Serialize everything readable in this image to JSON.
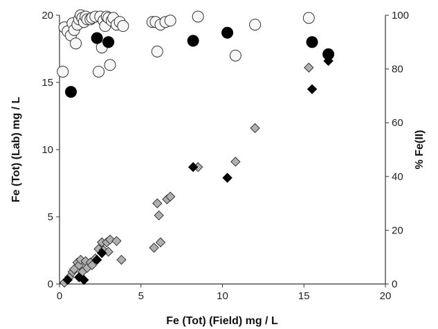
{
  "chart_data": {
    "type": "scatter",
    "title": "",
    "xlabel": "Fe (Tot) (Field)  mg / L",
    "ylabel_left": "Fe (Tot) (Lab) mg / L",
    "ylabel_right": "% Fe(II)",
    "xlim": [
      0,
      20
    ],
    "ylim_left": [
      0,
      20
    ],
    "ylim_right": [
      0,
      100
    ],
    "x_ticks": [
      0,
      5,
      10,
      15,
      20
    ],
    "y_left_ticks": [
      0,
      5,
      10,
      15,
      20
    ],
    "y_right_ticks": [
      0,
      20,
      40,
      60,
      80,
      100
    ],
    "grid": false,
    "legend": "none",
    "colors": {
      "black_marker": "#000000",
      "gray_diamond": "#b0b0b0",
      "white_circle": "#f7f7f7",
      "outline": "#333333"
    },
    "series": [
      {
        "marker": "circle-black",
        "axis": "right",
        "points": [
          [
            0.7,
            71.5
          ],
          [
            2.3,
            91.5
          ],
          [
            3.0,
            90
          ],
          [
            8.2,
            90.5
          ],
          [
            10.3,
            93.5
          ],
          [
            15.5,
            90
          ],
          [
            16.5,
            85.5
          ]
        ]
      },
      {
        "marker": "circle-white",
        "axis": "right",
        "points": [
          [
            0.2,
            79
          ],
          [
            0.3,
            95.5
          ],
          [
            0.5,
            94
          ],
          [
            0.7,
            92.5
          ],
          [
            0.8,
            97
          ],
          [
            0.9,
            94.5
          ],
          [
            1.0,
            89.5
          ],
          [
            1.1,
            96.5
          ],
          [
            1.2,
            98.5
          ],
          [
            1.3,
            100
          ],
          [
            1.4,
            99
          ],
          [
            1.5,
            97.5
          ],
          [
            1.6,
            99.5
          ],
          [
            1.7,
            98.5
          ],
          [
            1.9,
            98.5
          ],
          [
            2.0,
            99
          ],
          [
            2.2,
            99.5
          ],
          [
            2.4,
            79
          ],
          [
            2.5,
            99.5
          ],
          [
            2.6,
            88
          ],
          [
            2.7,
            98
          ],
          [
            2.8,
            96
          ],
          [
            2.9,
            99.5
          ],
          [
            3.0,
            99
          ],
          [
            3.1,
            81.5
          ],
          [
            3.2,
            98
          ],
          [
            3.3,
            99
          ],
          [
            3.5,
            96.5
          ],
          [
            3.7,
            97.5
          ],
          [
            3.9,
            96
          ],
          [
            5.7,
            97.5
          ],
          [
            5.9,
            97.5
          ],
          [
            6.0,
            86.5
          ],
          [
            6.2,
            96.5
          ],
          [
            6.5,
            97.5
          ],
          [
            6.8,
            98
          ],
          [
            8.5,
            99.5
          ],
          [
            10.8,
            85
          ],
          [
            12.0,
            96.5
          ],
          [
            15.3,
            99
          ]
        ]
      },
      {
        "marker": "diamond-black",
        "axis": "left",
        "points": [
          [
            0.5,
            0.3
          ],
          [
            1.2,
            0.5
          ],
          [
            1.5,
            0.3
          ],
          [
            2.3,
            1.8
          ],
          [
            2.6,
            2.3
          ],
          [
            8.2,
            8.7
          ],
          [
            10.3,
            7.9
          ],
          [
            15.5,
            14.5
          ],
          [
            16.5,
            16.6
          ]
        ]
      },
      {
        "marker": "diamond-gray",
        "axis": "left",
        "points": [
          [
            0.3,
            0.1
          ],
          [
            0.6,
            0.5
          ],
          [
            0.8,
            0.9
          ],
          [
            0.9,
            1.1
          ],
          [
            1.1,
            1.6
          ],
          [
            1.2,
            1.4
          ],
          [
            1.3,
            1.8
          ],
          [
            1.4,
            0.9
          ],
          [
            1.6,
            1.7
          ],
          [
            1.7,
            1.2
          ],
          [
            1.9,
            1.6
          ],
          [
            2.0,
            1.4
          ],
          [
            2.2,
            1.9
          ],
          [
            2.4,
            2.6
          ],
          [
            2.6,
            3.1
          ],
          [
            2.7,
            2.5
          ],
          [
            2.9,
            3.1
          ],
          [
            3.0,
            2.4
          ],
          [
            3.1,
            3.3
          ],
          [
            3.5,
            3.2
          ],
          [
            3.8,
            1.8
          ],
          [
            5.8,
            2.7
          ],
          [
            6.0,
            6.0
          ],
          [
            6.1,
            5.1
          ],
          [
            6.2,
            3.1
          ],
          [
            6.6,
            6.3
          ],
          [
            6.8,
            6.5
          ],
          [
            8.5,
            8.7
          ],
          [
            10.8,
            9.1
          ],
          [
            12.0,
            11.6
          ],
          [
            15.3,
            16.1
          ]
        ]
      }
    ]
  }
}
